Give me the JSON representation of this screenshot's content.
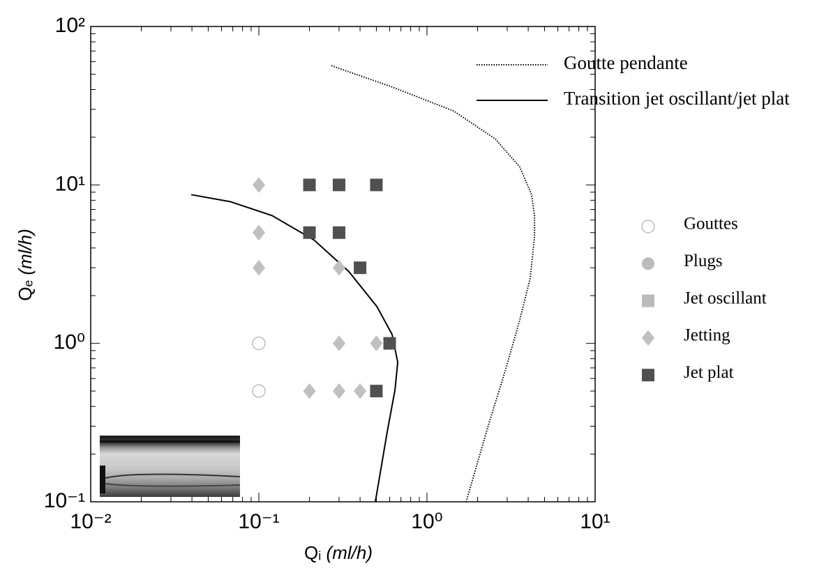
{
  "chart_data": {
    "type": "scatter",
    "xlabel": {
      "symbol": "Qᵢ",
      "unit": "(ml/h)"
    },
    "ylabel": {
      "symbol": "Qₑ",
      "unit": "(ml/h)"
    },
    "xscale": "log",
    "yscale": "log",
    "xlim": [
      0.01,
      10
    ],
    "ylim": [
      0.1,
      100
    ],
    "xticks": [
      {
        "value": 0.01,
        "label": "10⁻²"
      },
      {
        "value": 0.1,
        "label": "10⁻¹"
      },
      {
        "value": 1,
        "label": "10⁰"
      },
      {
        "value": 10,
        "label": "10¹"
      }
    ],
    "yticks": [
      {
        "value": 0.1,
        "label": "10⁻¹"
      },
      {
        "value": 1,
        "label": "10⁰"
      },
      {
        "value": 10,
        "label": "10¹"
      },
      {
        "value": 100,
        "label": "10²"
      }
    ],
    "minor_ticks": true,
    "grid": false,
    "series": [
      {
        "name": "Goutte pendante",
        "type": "line",
        "style": "dotted",
        "color": "#000000",
        "x": [
          0.27,
          0.61,
          1.44,
          2.55,
          3.56,
          4.19,
          4.36,
          4.36,
          4.11,
          3.56,
          2.94,
          2.32,
          1.71
        ],
        "values": [
          56.6,
          41.8,
          29.3,
          19.5,
          13.0,
          8.68,
          6.4,
          4.72,
          2.57,
          1.4,
          0.687,
          0.305,
          0.1
        ]
      },
      {
        "name": "Transition jet oscillant/jet plat",
        "type": "line",
        "style": "solid",
        "color": "#000000",
        "x": [
          0.0396,
          0.0676,
          0.12,
          0.213,
          0.343,
          0.503,
          0.62,
          0.67,
          0.645,
          0.58,
          0.493
        ],
        "values": [
          8.68,
          7.84,
          6.4,
          4.49,
          2.84,
          1.71,
          1.14,
          0.76,
          0.507,
          0.276,
          0.1
        ]
      },
      {
        "name": "Gouttes",
        "type": "scatter",
        "marker": "open-circle",
        "color": "#bbbbbb",
        "x": [
          0.1,
          0.1
        ],
        "values": [
          1,
          0.5
        ]
      },
      {
        "name": "Plugs",
        "type": "scatter",
        "marker": "circle",
        "color": "#bbbbbb",
        "x": [],
        "values": []
      },
      {
        "name": "Jet oscillant",
        "type": "scatter",
        "marker": "square",
        "color": "#bbbbbb",
        "x": [],
        "values": []
      },
      {
        "name": "Jetting",
        "type": "scatter",
        "marker": "diamond",
        "color": "#c0c0c0",
        "x": [
          0.1,
          0.1,
          0.1,
          0.3,
          0.3,
          0.5,
          0.2,
          0.3,
          0.4
        ],
        "values": [
          10,
          5,
          3,
          3,
          1,
          1,
          0.5,
          0.5,
          0.5
        ]
      },
      {
        "name": "Jet plat",
        "type": "scatter",
        "marker": "square",
        "color": "#505050",
        "x": [
          0.2,
          0.3,
          0.5,
          0.2,
          0.3,
          0.4,
          0.6,
          0.5
        ],
        "values": [
          10,
          10,
          10,
          5,
          5,
          3,
          1,
          0.5
        ]
      }
    ]
  }
}
